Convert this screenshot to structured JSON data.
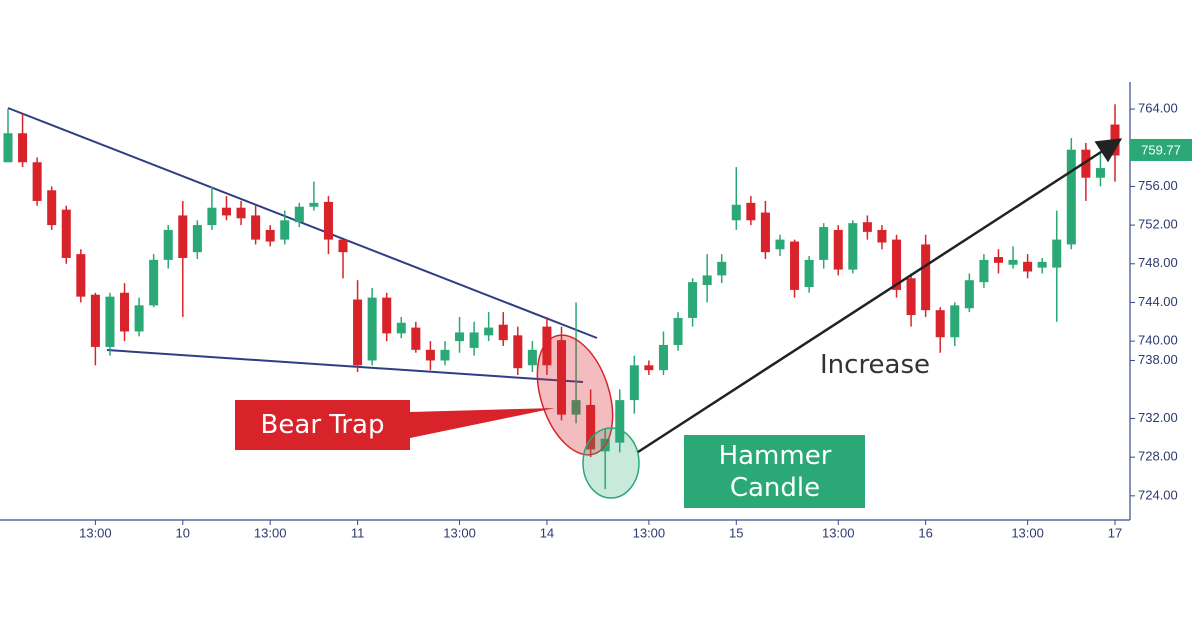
{
  "chart_data": {
    "type": "candlestick",
    "categories": [
      null,
      null,
      null,
      null,
      null,
      null,
      "13:00",
      null,
      null,
      null,
      null,
      null,
      "10",
      null,
      null,
      null,
      null,
      null,
      "13:00",
      null,
      null,
      null,
      null,
      null,
      "11",
      null,
      null,
      null,
      null,
      null,
      null,
      "13:00",
      null,
      null,
      null,
      null,
      null,
      "14",
      null,
      null,
      null,
      null,
      null,
      null,
      "13:00",
      null,
      null,
      null,
      null,
      null,
      "15",
      null,
      null,
      null,
      null,
      null,
      null,
      "13:00",
      null,
      null,
      null,
      null,
      null,
      "16",
      null,
      null,
      null,
      null,
      null,
      null,
      "13:00",
      null,
      null,
      null,
      null,
      null,
      "17"
    ],
    "open": [
      758.5,
      761.5,
      758.5,
      755.6,
      753.6,
      749,
      744.8,
      739.4,
      745,
      741,
      743.7,
      748.4,
      753,
      749.2,
      752,
      753.8,
      753.8,
      753,
      751.5,
      750.5,
      752.3,
      753.9,
      754.4,
      750.5,
      744.3,
      738,
      744.5,
      740.8,
      741.4,
      739.1,
      738,
      740,
      739.3,
      740.6,
      741.7,
      740.6,
      737.5,
      741.5,
      740.1,
      732.4,
      733.4,
      728.6,
      729.5,
      733.9,
      737.5,
      737,
      739.6,
      742.4,
      745.8,
      746.8,
      752.5,
      754.3,
      753.3,
      749.5,
      750.3,
      745.6,
      748.4,
      751.5,
      747.4,
      752.3,
      751.5,
      750.5,
      746.5,
      750,
      743.2,
      740.4,
      743.4,
      746.1,
      748.7,
      747.9,
      748.2,
      747.6,
      747.6,
      750,
      759.8,
      756.9,
      762.4
    ],
    "high": [
      764,
      763.5,
      759,
      756,
      754,
      749.5,
      745,
      745,
      746,
      744.5,
      749,
      752,
      754.5,
      752.5,
      756,
      755,
      754.5,
      754,
      752,
      753.5,
      754.3,
      756.5,
      755,
      750.5,
      746.3,
      745.5,
      745,
      742.5,
      742,
      740,
      740,
      742.5,
      742,
      743,
      743,
      741.5,
      740,
      742.5,
      741.5,
      744,
      735,
      731,
      735,
      738.5,
      738,
      741,
      743,
      746.5,
      749,
      749,
      758,
      755,
      754.5,
      751,
      750.5,
      748.8,
      752.2,
      752,
      752.5,
      753,
      752,
      751,
      747,
      751,
      743.5,
      744,
      747,
      749,
      749.5,
      749.8,
      749,
      748.6,
      753.5,
      761,
      760.5,
      759.5,
      764.5
    ],
    "low": [
      758.5,
      758,
      754,
      751.5,
      748,
      744,
      737.5,
      738.5,
      740,
      740.5,
      743.5,
      747.5,
      742.5,
      748.5,
      751.5,
      752.5,
      752,
      750,
      749.8,
      750,
      751.8,
      753.5,
      749,
      746.5,
      736.8,
      737.5,
      740,
      740.3,
      738.8,
      737,
      737.5,
      738.8,
      738.5,
      740,
      739.5,
      736.5,
      736.8,
      736.5,
      731.8,
      731.5,
      728,
      724.7,
      728.5,
      732.5,
      736.5,
      736.5,
      739,
      741.5,
      744,
      746,
      751.5,
      752,
      748.5,
      748.8,
      744.5,
      745,
      747.5,
      746.8,
      747,
      750.5,
      749.5,
      744.5,
      741.5,
      742.5,
      738.8,
      739.5,
      743,
      745.5,
      747,
      747.5,
      746.5,
      747,
      742,
      749.5,
      754.5,
      756,
      756.5
    ],
    "close": [
      761.5,
      758.5,
      754.5,
      752,
      748.6,
      744.6,
      739.4,
      744.6,
      741,
      743.7,
      748.4,
      751.5,
      748.6,
      752,
      753.8,
      753,
      752.7,
      750.5,
      750.3,
      752.5,
      753.9,
      754.3,
      750.5,
      749.2,
      737.5,
      744.5,
      740.8,
      741.9,
      739.1,
      738,
      739.1,
      740.9,
      740.9,
      741.4,
      740.1,
      737.2,
      739.1,
      737.5,
      732.4,
      733.9,
      728.8,
      729.9,
      733.9,
      737.5,
      737,
      739.6,
      742.4,
      746.1,
      746.8,
      748.2,
      754.1,
      752.5,
      749.2,
      750.5,
      745.3,
      748.4,
      751.8,
      747.4,
      752.2,
      751.3,
      750.2,
      745.3,
      742.7,
      743.2,
      740.4,
      743.7,
      746.3,
      748.4,
      748.1,
      748.4,
      747.2,
      748.2,
      750.5,
      759.8,
      756.9,
      757.9,
      759.2
    ],
    "up_color": "#2aa876",
    "down_color": "#d8232a",
    "ylim": [
      721.5,
      766.8
    ],
    "yticks": [
      {
        "value": 764,
        "label": "764.00"
      },
      {
        "value": 756,
        "label": "756.00"
      },
      {
        "value": 752,
        "label": "752.00"
      },
      {
        "value": 748,
        "label": "748.00"
      },
      {
        "value": 744,
        "label": "744.00"
      },
      {
        "value": 740,
        "label": "740.00"
      },
      {
        "value": 738,
        "label": "738.00"
      },
      {
        "value": 732,
        "label": "732.00"
      },
      {
        "value": 728,
        "label": "728.00"
      },
      {
        "value": 724,
        "label": "724.00"
      }
    ],
    "last_price": 759.77,
    "annotations": {
      "bear_trap": "Bear Trap",
      "hammer": "Hammer Candle",
      "increase": "Increase"
    }
  }
}
